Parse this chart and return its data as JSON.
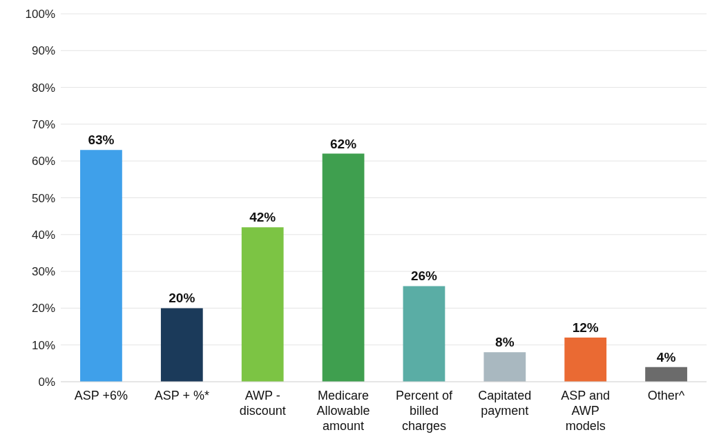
{
  "chart_data": {
    "type": "bar",
    "categories": [
      "ASP +6%",
      "ASP + %*",
      "AWP -\ndiscount",
      "Medicare\nAllowable\namount",
      "Percent of\nbilled\ncharges",
      "Capitated\npayment",
      "ASP and\nAWP\nmodels",
      "Other^"
    ],
    "values": [
      63,
      20,
      42,
      62,
      26,
      8,
      12,
      4
    ],
    "colors": [
      "#3fa0ea",
      "#1b3a5a",
      "#7cc444",
      "#3f9f4f",
      "#5aada5",
      "#a9b8c0",
      "#ea6a33",
      "#6b6b6b"
    ],
    "value_labels": [
      "63%",
      "20%",
      "42%",
      "62%",
      "26%",
      "8%",
      "12%",
      "4%"
    ],
    "ylim": [
      0,
      100
    ],
    "yticks": [
      {
        "value": 0,
        "label": "0%"
      },
      {
        "value": 10,
        "label": "10%"
      },
      {
        "value": 20,
        "label": "20%"
      },
      {
        "value": 30,
        "label": "30%"
      },
      {
        "value": 40,
        "label": "40%"
      },
      {
        "value": 50,
        "label": "50%"
      },
      {
        "value": 60,
        "label": "60%"
      },
      {
        "value": 70,
        "label": "70%"
      },
      {
        "value": 80,
        "label": "80%"
      },
      {
        "value": 90,
        "label": "90%"
      },
      {
        "value": 100,
        "label": "100%"
      }
    ],
    "grid": "y"
  }
}
